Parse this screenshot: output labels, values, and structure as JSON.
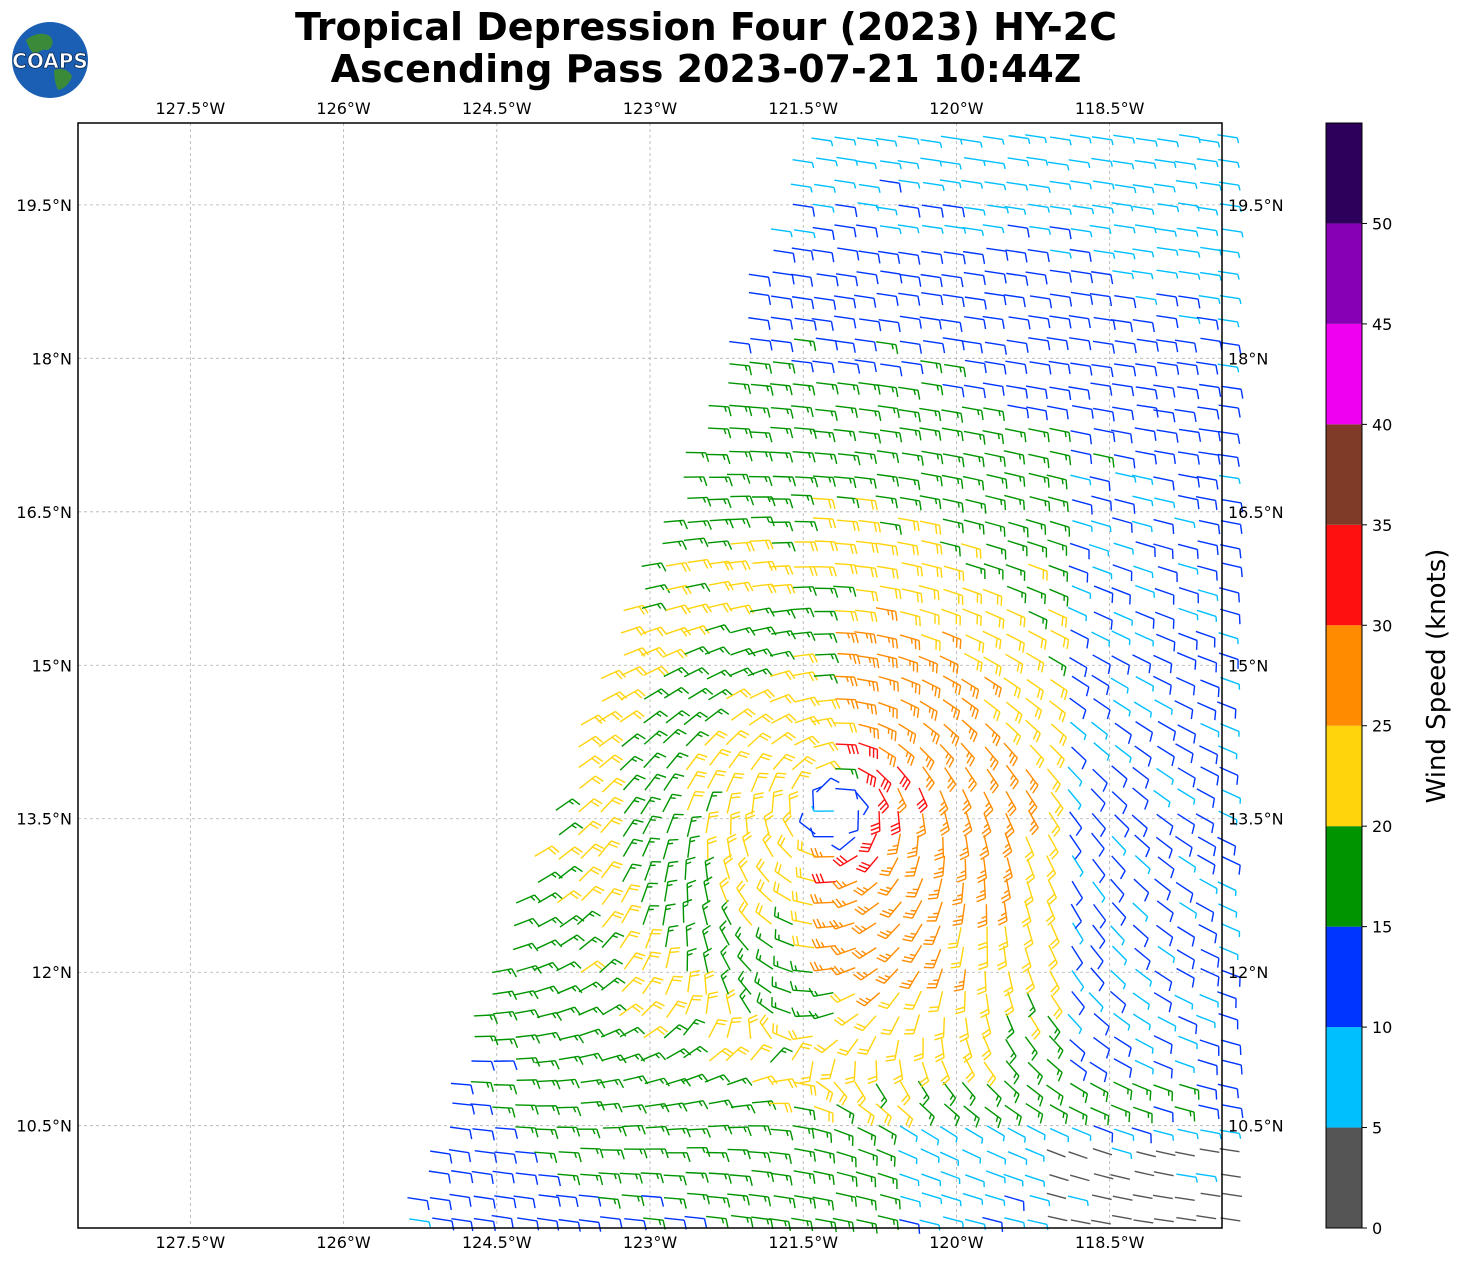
{
  "title": {
    "line1": "Tropical Depression Four (2023) HY-2C",
    "line2": "Ascending Pass 2023-07-21 10:44Z"
  },
  "logo": {
    "text": "COAPS",
    "icon": "globe-logo-icon"
  },
  "map": {
    "lon_range": [
      -128.6,
      -117.4
    ],
    "lat_range": [
      9.5,
      20.3
    ],
    "lon_ticks": [
      "127.5°W",
      "126°W",
      "124.5°W",
      "123°W",
      "121.5°W",
      "120°W",
      "118.5°W"
    ],
    "lat_ticks": [
      "19.5°N",
      "18°N",
      "16.5°N",
      "15°N",
      "13.5°N",
      "12°N",
      "10.5°N"
    ],
    "gridlines": true,
    "storm_center_approx": {
      "lon": -121.2,
      "lat": 13.6
    },
    "swath_edge_lons_at_lat": {
      "west_at_9.5N": -125.5,
      "west_at_20.3N": -121.5
    }
  },
  "colorbar": {
    "label": "Wind Speed (knots)",
    "ticks": [
      "0",
      "5",
      "10",
      "15",
      "20",
      "25",
      "30",
      "35",
      "40",
      "45",
      "50"
    ],
    "bins": [
      {
        "from": 0,
        "to": 5,
        "color": "#555555"
      },
      {
        "from": 5,
        "to": 10,
        "color": "#00bfff"
      },
      {
        "from": 10,
        "to": 15,
        "color": "#0035ff"
      },
      {
        "from": 15,
        "to": 20,
        "color": "#009500"
      },
      {
        "from": 20,
        "to": 25,
        "color": "#ffd40d"
      },
      {
        "from": 25,
        "to": 30,
        "color": "#ff8c00"
      },
      {
        "from": 30,
        "to": 35,
        "color": "#ff1010"
      },
      {
        "from": 35,
        "to": 40,
        "color": "#7f3a28"
      },
      {
        "from": 40,
        "to": 45,
        "color": "#f000f0"
      },
      {
        "from": 45,
        "to": 50,
        "color": "#8800b5"
      },
      {
        "from": 50,
        "to": 55,
        "color": "#2d005c"
      }
    ]
  }
}
